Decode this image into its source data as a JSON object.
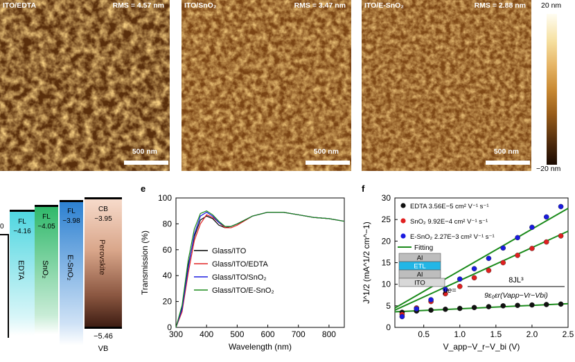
{
  "afm": {
    "panels": [
      {
        "label": "ITO/EDTA",
        "rms": "RMS = 4.57 nm",
        "scale": "500 nm"
      },
      {
        "label": "ITO/SnO₂",
        "rms": "RMS = 3.47 nm",
        "scale": "500 nm"
      },
      {
        "label": "ITO/E-SnO₂",
        "rms": "RMS = 2.88 nm",
        "scale": "500 nm"
      }
    ],
    "colorbar": {
      "top": "20 nm",
      "bottom": "−20 nm"
    }
  },
  "band_diagram": {
    "edge_value": "0",
    "layers": [
      {
        "name": "EDTA",
        "fl_label": "FL",
        "fl_value": "−4.16",
        "color": "#4fd6e0"
      },
      {
        "name": "SnO₂",
        "fl_label": "FL",
        "fl_value": "−4.05",
        "color": "#2fb86a"
      },
      {
        "name": "E-SnO₂",
        "fl_label": "FL",
        "fl_value": "−3.98",
        "color": "#2a7fd0"
      },
      {
        "name": "Perovskite",
        "cb_label": "CB",
        "cb_value": "−3.95",
        "vb_label": "VB",
        "vb_value": "−5.46"
      }
    ]
  },
  "panel_e": {
    "letter": "e"
  },
  "panel_f": {
    "letter": "f"
  },
  "chart_data": [
    {
      "type": "line",
      "xlabel": "Wavelength (nm)",
      "ylabel": "Transmission (%)",
      "xlim": [
        300,
        850
      ],
      "ylim": [
        0,
        100
      ],
      "xticks": [
        "300",
        "400",
        "500",
        "600",
        "700",
        "800"
      ],
      "yticks": [
        "0",
        "20",
        "40",
        "60",
        "80",
        "100"
      ],
      "legend_position": "center-right",
      "series": [
        {
          "name": "Glass/ITO",
          "color": "#000000",
          "x": [
            300,
            320,
            340,
            360,
            380,
            400,
            420,
            440,
            460,
            480,
            500,
            550,
            600,
            650,
            700,
            750,
            800,
            850
          ],
          "y": [
            0,
            16,
            48,
            70,
            83,
            86,
            84,
            79,
            77,
            78,
            80,
            86,
            89,
            89,
            87,
            85,
            84,
            82
          ]
        },
        {
          "name": "Glass/ITO/EDTA",
          "color": "#e02020",
          "x": [
            300,
            320,
            340,
            360,
            380,
            400,
            420,
            440,
            460,
            480,
            500,
            550,
            600,
            650,
            700,
            750,
            800,
            850
          ],
          "y": [
            0,
            12,
            42,
            67,
            80,
            87,
            85,
            81,
            77,
            77,
            79,
            86,
            89,
            89,
            87,
            85,
            84,
            82
          ]
        },
        {
          "name": "Glass/ITO/SnO₂",
          "color": "#1a1ae0",
          "x": [
            300,
            320,
            340,
            360,
            380,
            400,
            420,
            440,
            460,
            480,
            500,
            550,
            600,
            650,
            700,
            750,
            800,
            850
          ],
          "y": [
            0,
            14,
            46,
            72,
            86,
            89,
            86,
            81,
            78,
            78,
            80,
            86,
            89,
            89,
            87,
            85,
            84,
            82
          ]
        },
        {
          "name": "Glass/ITO/E-SnO₂",
          "color": "#1a8a1a",
          "x": [
            300,
            320,
            340,
            360,
            380,
            400,
            420,
            440,
            460,
            480,
            500,
            550,
            600,
            650,
            700,
            750,
            800,
            850
          ],
          "y": [
            0,
            17,
            52,
            76,
            88,
            90,
            87,
            82,
            78,
            78,
            80,
            86,
            89,
            89,
            87,
            85,
            84,
            82
          ]
        }
      ]
    },
    {
      "type": "scatter",
      "xlabel": "V_app−V_r−V_bi (V)",
      "ylabel": "J^1/2 (mA^1/2 cm^−1)",
      "xlim": [
        0.1,
        2.5
      ],
      "ylim": [
        0,
        30
      ],
      "xticks": [
        "0.5",
        "1.0",
        "1.5",
        "2.0",
        "2.5"
      ],
      "yticks": [
        "0",
        "5",
        "10",
        "15",
        "20",
        "25",
        "30"
      ],
      "legend_position": "top-left",
      "fitting_label": "Fitting",
      "fit_color": "#1a8a1a",
      "series": [
        {
          "name": "EDTA 3.56E−5 cm² V⁻¹ s⁻¹",
          "color": "#111111",
          "x": [
            0.2,
            0.4,
            0.6,
            0.8,
            1.0,
            1.2,
            1.4,
            1.6,
            1.8,
            2.0,
            2.2,
            2.4
          ],
          "y": [
            3.5,
            3.8,
            4.0,
            4.2,
            4.4,
            4.6,
            4.8,
            5.0,
            5.1,
            5.2,
            5.3,
            5.4
          ],
          "fit": [
            [
              0.1,
              3.6
            ],
            [
              2.5,
              5.5
            ]
          ]
        },
        {
          "name": "SnO₂ 9.92E−4 cm² V⁻¹ s⁻¹",
          "color": "#e02020",
          "x": [
            0.2,
            0.4,
            0.6,
            0.8,
            1.0,
            1.2,
            1.4,
            1.6,
            1.8,
            2.0,
            2.2,
            2.4
          ],
          "y": [
            3.0,
            4.5,
            6.0,
            7.8,
            9.5,
            11.5,
            13.2,
            15.0,
            16.7,
            18.3,
            19.8,
            21.2
          ],
          "fit": [
            [
              0.1,
              4.0
            ],
            [
              2.5,
              22.3
            ]
          ]
        },
        {
          "name": "E-SnO₂ 2.27E−3 cm² V⁻¹ s⁻¹",
          "color": "#1a1ae0",
          "x": [
            0.2,
            0.4,
            0.6,
            0.8,
            1.0,
            1.2,
            1.4,
            1.6,
            1.8,
            2.0,
            2.2,
            2.4
          ],
          "y": [
            2.5,
            4.3,
            6.4,
            8.8,
            11.2,
            13.6,
            16.0,
            18.4,
            20.8,
            23.2,
            25.6,
            28.0
          ],
          "fit": [
            [
              0.1,
              4.5
            ],
            [
              2.5,
              27.6
            ]
          ]
        }
      ],
      "inset": {
        "layers": [
          "Al",
          "ETL",
          "Al",
          "ITO"
        ],
        "formula_lhs": "μe=",
        "formula_num": "8JL³",
        "formula_den": "9ε₀εr(Vapp−Vr−Vbi)"
      }
    }
  ]
}
